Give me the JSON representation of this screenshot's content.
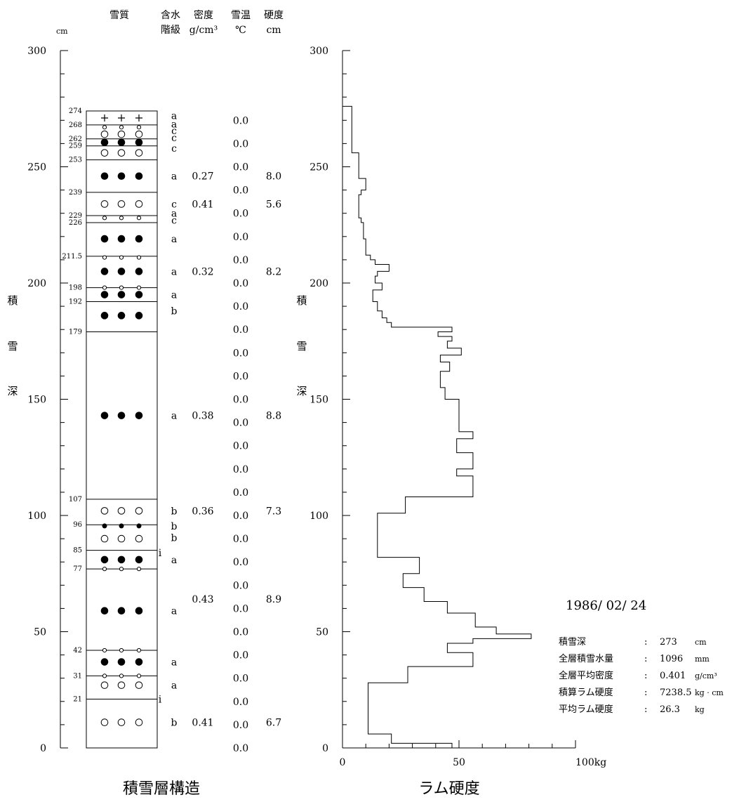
{
  "header": {
    "cm": "cm",
    "snow_quality": "雪質",
    "water1": "含水",
    "water2": "階級",
    "density1": "密度",
    "density2": "g/cm³",
    "temp1": "雪温",
    "temp2": "℃",
    "hard1": "硬度",
    "hard2": "cm"
  },
  "depth_label": [
    "積",
    "雪",
    "深"
  ],
  "captions": {
    "left": "積雪層構造",
    "right": "ラム硬度"
  },
  "summary": {
    "date": "1986/ 02/ 24",
    "rows": [
      {
        "label": "積雪深",
        "sep": ":",
        "value": "273",
        "unit": "cm"
      },
      {
        "label": "全層積雪水量",
        "sep": ":",
        "value": "1096",
        "unit": "mm"
      },
      {
        "label": "全層平均密度",
        "sep": ":",
        "value": "0.401",
        "unit": "g/cm³"
      },
      {
        "label": "積算ラム硬度",
        "sep": ":",
        "value": "7238.5",
        "unit": "kg · cm"
      },
      {
        "label": "平均ラム硬度",
        "sep": ":",
        "value": "26.3",
        "unit": "kg"
      }
    ]
  },
  "chart_data": [
    {
      "type": "table",
      "title": "積雪層構造",
      "y_range": [
        0,
        300
      ],
      "y_ticks": [
        "0",
        "50",
        "100",
        "150",
        "200",
        "250",
        "300"
      ],
      "y_unit": "cm",
      "boundaries": [
        "274",
        "268",
        "262",
        "259",
        "253",
        "239",
        "229",
        "226",
        "211.5",
        "198",
        "192",
        "179",
        "107",
        "96",
        "85",
        "77",
        "42",
        "31",
        "21"
      ],
      "symbols": [
        {
          "y": 271,
          "kind": "plus"
        },
        {
          "y": 267,
          "kind": "small-open"
        },
        {
          "y": 264,
          "kind": "open"
        },
        {
          "y": 260.5,
          "kind": "filled"
        },
        {
          "y": 256,
          "kind": "open"
        },
        {
          "y": 246,
          "kind": "filled"
        },
        {
          "y": 234,
          "kind": "open"
        },
        {
          "y": 228,
          "kind": "small-open"
        },
        {
          "y": 219,
          "kind": "filled"
        },
        {
          "y": 211,
          "kind": "small-open"
        },
        {
          "y": 205,
          "kind": "filled"
        },
        {
          "y": 198,
          "kind": "small-open"
        },
        {
          "y": 195,
          "kind": "filled"
        },
        {
          "y": 186,
          "kind": "filled"
        },
        {
          "y": 143,
          "kind": "filled"
        },
        {
          "y": 102,
          "kind": "open"
        },
        {
          "y": 95.5,
          "kind": "small-filled"
        },
        {
          "y": 90,
          "kind": "open"
        },
        {
          "y": 81,
          "kind": "filled"
        },
        {
          "y": 77,
          "kind": "small-open"
        },
        {
          "y": 59,
          "kind": "filled"
        },
        {
          "y": 42,
          "kind": "small-open"
        },
        {
          "y": 37,
          "kind": "filled"
        },
        {
          "y": 31,
          "kind": "small-open"
        },
        {
          "y": 27,
          "kind": "open"
        },
        {
          "y": 11,
          "kind": "open"
        }
      ],
      "water_class": [
        {
          "y": 272,
          "text": "a"
        },
        {
          "y": 268.5,
          "text": "a"
        },
        {
          "y": 265.5,
          "text": "c"
        },
        {
          "y": 262.5,
          "text": "c"
        },
        {
          "y": 258,
          "text": "c"
        },
        {
          "y": 246,
          "text": "a"
        },
        {
          "y": 234,
          "text": "c"
        },
        {
          "y": 230,
          "text": "a"
        },
        {
          "y": 227,
          "text": "c"
        },
        {
          "y": 219,
          "text": "a"
        },
        {
          "y": 205,
          "text": "a"
        },
        {
          "y": 195,
          "text": "a"
        },
        {
          "y": 188,
          "text": "b"
        },
        {
          "y": 143,
          "text": "a"
        },
        {
          "y": 102,
          "text": "b"
        },
        {
          "y": 95.5,
          "text": "b"
        },
        {
          "y": 90.5,
          "text": "b"
        },
        {
          "y": 81,
          "text": "a"
        },
        {
          "y": 59,
          "text": "a"
        },
        {
          "y": 37,
          "text": "a"
        },
        {
          "y": 27,
          "text": "a"
        },
        {
          "y": 11,
          "text": "b"
        }
      ],
      "i_marks": [
        {
          "y": 84,
          "text": "i"
        },
        {
          "y": 21,
          "text": "i"
        }
      ],
      "density": [
        {
          "y": 246,
          "text": "0.27"
        },
        {
          "y": 234,
          "text": "0.41"
        },
        {
          "y": 205,
          "text": "0.32"
        },
        {
          "y": 143,
          "text": "0.38"
        },
        {
          "y": 102,
          "text": "0.36"
        },
        {
          "y": 64,
          "text": "0.43"
        },
        {
          "y": 11,
          "text": "0.41"
        }
      ],
      "snow_temp": {
        "start": 270,
        "step": 10,
        "count": 28,
        "value": "0.0"
      },
      "hardness_cm": [
        {
          "y": 246,
          "text": "8.0"
        },
        {
          "y": 234,
          "text": "5.6"
        },
        {
          "y": 205,
          "text": "8.2"
        },
        {
          "y": 143,
          "text": "8.8"
        },
        {
          "y": 102,
          "text": "7.3"
        },
        {
          "y": 64,
          "text": "8.9"
        },
        {
          "y": 11,
          "text": "6.7"
        }
      ]
    },
    {
      "type": "line",
      "title": "ラム硬度",
      "xlabel": "100kg",
      "x_ticks": [
        "0",
        "50"
      ],
      "xlim": [
        0,
        100
      ],
      "ylim": [
        0,
        300
      ],
      "y_ticks": [
        "0",
        "50",
        "100",
        "150",
        "200",
        "250",
        "300"
      ],
      "step": "post",
      "series": [
        {
          "values": [
            {
              "y": 0,
              "x": 47
            },
            {
              "y": 2,
              "x": 21
            },
            {
              "y": 6,
              "x": 11
            },
            {
              "y": 28,
              "x": 28
            },
            {
              "y": 35,
              "x": 56
            },
            {
              "y": 41,
              "x": 45
            },
            {
              "y": 45,
              "x": 56
            },
            {
              "y": 47,
              "x": 81
            },
            {
              "y": 49,
              "x": 66
            },
            {
              "y": 52,
              "x": 57
            },
            {
              "y": 58,
              "x": 45
            },
            {
              "y": 63,
              "x": 35
            },
            {
              "y": 69,
              "x": 26
            },
            {
              "y": 75,
              "x": 33
            },
            {
              "y": 80,
              "x": 33
            },
            {
              "y": 82,
              "x": 15
            },
            {
              "y": 101,
              "x": 27
            },
            {
              "y": 108,
              "x": 56
            },
            {
              "y": 117,
              "x": 49
            },
            {
              "y": 120,
              "x": 56
            },
            {
              "y": 127,
              "x": 49
            },
            {
              "y": 133,
              "x": 56
            },
            {
              "y": 136,
              "x": 50
            },
            {
              "y": 150,
              "x": 44
            },
            {
              "y": 155,
              "x": 42
            },
            {
              "y": 162,
              "x": 46
            },
            {
              "y": 166,
              "x": 42
            },
            {
              "y": 169,
              "x": 51
            },
            {
              "y": 172,
              "x": 45
            },
            {
              "y": 175,
              "x": 47
            },
            {
              "y": 177,
              "x": 41
            },
            {
              "y": 179,
              "x": 47
            },
            {
              "y": 181,
              "x": 21
            },
            {
              "y": 183,
              "x": 19
            },
            {
              "y": 185,
              "x": 17
            },
            {
              "y": 188,
              "x": 15
            },
            {
              "y": 192,
              "x": 13
            },
            {
              "y": 197,
              "x": 17
            },
            {
              "y": 200,
              "x": 14
            },
            {
              "y": 203,
              "x": 15
            },
            {
              "y": 205,
              "x": 20
            },
            {
              "y": 208,
              "x": 14
            },
            {
              "y": 210,
              "x": 12
            },
            {
              "y": 212,
              "x": 10
            },
            {
              "y": 219,
              "x": 9
            },
            {
              "y": 226,
              "x": 8
            },
            {
              "y": 228,
              "x": 7
            },
            {
              "y": 238,
              "x": 8
            },
            {
              "y": 240,
              "x": 10
            },
            {
              "y": 245,
              "x": 7
            },
            {
              "y": 256,
              "x": 4
            },
            {
              "y": 276,
              "x": 2
            }
          ]
        }
      ]
    }
  ]
}
